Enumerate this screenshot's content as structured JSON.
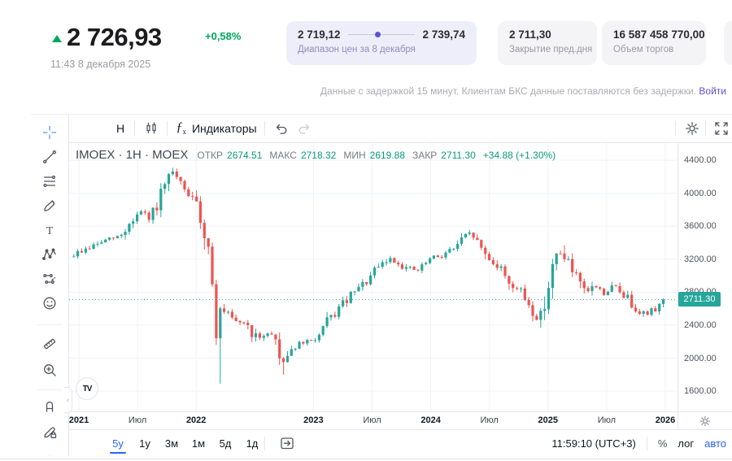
{
  "header": {
    "price": "2 726,93",
    "change": "+0,58%",
    "timestamp": "11:43 8 декабря 2025",
    "cards": {
      "range": {
        "low": "2 719,12",
        "high": "2 739,74",
        "label": "Диапазон цен за 8 декабря",
        "dot_position_pct": 40
      },
      "prev_close": {
        "value": "2 711,30",
        "label": "Закрытие пред.дня"
      },
      "volume": {
        "value": "16 587 458 770,00",
        "label": "Объем торгов"
      }
    },
    "disclaimer": {
      "text": "Данные с задержкой 15 минут. Клиентам БКС данные поставляются без задержки.",
      "link": "Войти"
    }
  },
  "toolbar": {
    "interval": "H",
    "fx_f": "ƒ",
    "fx_sub": "x",
    "indicators_label": "Индикаторы"
  },
  "legend": {
    "title": "IMOEX · 1H · MOEX",
    "open_label": "ОТКР",
    "open": "2674.51",
    "high_label": "МАКС",
    "high": "2718.32",
    "low_label": "МИН",
    "low": "2619.88",
    "close_label": "ЗАКР",
    "close": "2711.30",
    "change": "+34.88 (+1.30%)"
  },
  "bottom_toolbar": {
    "ranges": [
      "5у",
      "1у",
      "3м",
      "1м",
      "5д",
      "1д"
    ],
    "active_range": "5у",
    "clock": "11:59:10 (UTC+3)",
    "percent_label": "%",
    "log_label": "лог",
    "auto_label": "авто"
  },
  "logo_text": "TV",
  "colors": {
    "up": "#26a69a",
    "down": "#ef5350",
    "prev_close_line": "#26a69a",
    "badge_bg": "#26a69a",
    "legend_value": "#089981",
    "header_green": "#00a65e",
    "violet": "#5b51d8",
    "blue": "#2962ff",
    "grid": "#f0f2f8"
  },
  "chart_data": {
    "type": "candlestick",
    "symbol": "IMOEX",
    "interval": "1H",
    "exchange": "MOEX",
    "ohlc_today": {
      "open": 2674.51,
      "high": 2718.32,
      "low": 2619.88,
      "close": 2711.3
    },
    "change_text": "+34.88 (+1.30%)",
    "prev_close_line": 2711.3,
    "last_close": 2711.3,
    "price_label": "2711.30",
    "price_axis_ticks": [
      4400,
      4000,
      3600,
      3200,
      2800,
      2400,
      2000,
      1600
    ],
    "ylim": [
      1500,
      4550
    ],
    "time_axis_labels": [
      {
        "label": "2021",
        "yr": 2021.0,
        "year": true
      },
      {
        "label": "Июл",
        "yr": 2021.5,
        "year": false
      },
      {
        "label": "2022",
        "yr": 2022.0,
        "year": true
      },
      {
        "label": "2023",
        "yr": 2023.0,
        "year": true
      },
      {
        "label": "Июл",
        "yr": 2023.5,
        "year": false
      },
      {
        "label": "2024",
        "yr": 2024.0,
        "year": true
      },
      {
        "label": "Июл",
        "yr": 2024.5,
        "year": false
      },
      {
        "label": "2025",
        "yr": 2025.0,
        "year": true
      },
      {
        "label": "Июл",
        "yr": 2025.5,
        "year": false
      },
      {
        "label": "2026",
        "yr": 2026.0,
        "year": true
      }
    ],
    "candle_count": 150,
    "price_trajectory": [
      [
        2020.94,
        3230
      ],
      [
        2021.09,
        3330
      ],
      [
        2021.23,
        3420
      ],
      [
        2021.37,
        3480
      ],
      [
        2021.5,
        3720
      ],
      [
        2021.56,
        3780
      ],
      [
        2021.61,
        3660
      ],
      [
        2021.71,
        3950
      ],
      [
        2021.82,
        4250
      ],
      [
        2021.89,
        4080
      ],
      [
        2021.96,
        3980
      ],
      [
        2022.03,
        3790
      ],
      [
        2022.08,
        3600
      ],
      [
        2022.14,
        3150
      ],
      [
        2022.16,
        3100
      ],
      [
        2022.19,
        2380
      ],
      [
        2022.22,
        2500
      ],
      [
        2022.28,
        2560
      ],
      [
        2022.34,
        2400
      ],
      [
        2022.41,
        2460
      ],
      [
        2022.48,
        2330
      ],
      [
        2022.55,
        2210
      ],
      [
        2022.62,
        2330
      ],
      [
        2022.69,
        2250
      ],
      [
        2022.74,
        1950
      ],
      [
        2022.8,
        2060
      ],
      [
        2022.86,
        2150
      ],
      [
        2022.93,
        2180
      ],
      [
        2023.0,
        2210
      ],
      [
        2023.07,
        2280
      ],
      [
        2023.15,
        2460
      ],
      [
        2023.24,
        2610
      ],
      [
        2023.34,
        2760
      ],
      [
        2023.45,
        2900
      ],
      [
        2023.55,
        3060
      ],
      [
        2023.66,
        3210
      ],
      [
        2023.73,
        3160
      ],
      [
        2023.8,
        3100
      ],
      [
        2023.91,
        3060
      ],
      [
        2024.0,
        3190
      ],
      [
        2024.11,
        3250
      ],
      [
        2024.21,
        3330
      ],
      [
        2024.31,
        3470
      ],
      [
        2024.37,
        3510
      ],
      [
        2024.42,
        3380
      ],
      [
        2024.49,
        3250
      ],
      [
        2024.56,
        3150
      ],
      [
        2024.63,
        3060
      ],
      [
        2024.7,
        2900
      ],
      [
        2024.77,
        2820
      ],
      [
        2024.83,
        2700
      ],
      [
        2024.89,
        2560
      ],
      [
        2024.94,
        2450
      ],
      [
        2025.0,
        2800
      ],
      [
        2025.05,
        3060
      ],
      [
        2025.1,
        3240
      ],
      [
        2025.14,
        3270
      ],
      [
        2025.19,
        3150
      ],
      [
        2025.24,
        3000
      ],
      [
        2025.29,
        2860
      ],
      [
        2025.34,
        2760
      ],
      [
        2025.4,
        2900
      ],
      [
        2025.45,
        2830
      ],
      [
        2025.5,
        2780
      ],
      [
        2025.55,
        2850
      ],
      [
        2025.59,
        2870
      ],
      [
        2025.64,
        2790
      ],
      [
        2025.69,
        2740
      ],
      [
        2025.74,
        2640
      ],
      [
        2025.8,
        2580
      ],
      [
        2025.85,
        2520
      ],
      [
        2025.89,
        2560
      ],
      [
        2025.94,
        2620
      ],
      [
        2025.98,
        2680
      ],
      [
        2026.0,
        2711.3
      ]
    ],
    "extreme_wicks": [
      {
        "yr": 2021.825,
        "high": 4300
      },
      {
        "yr": 2022.19,
        "low": 1690
      },
      {
        "yr": 2022.74,
        "low": 1800
      },
      {
        "yr": 2024.94,
        "low": 2370
      },
      {
        "yr": 2025.14,
        "high": 3370
      }
    ]
  }
}
